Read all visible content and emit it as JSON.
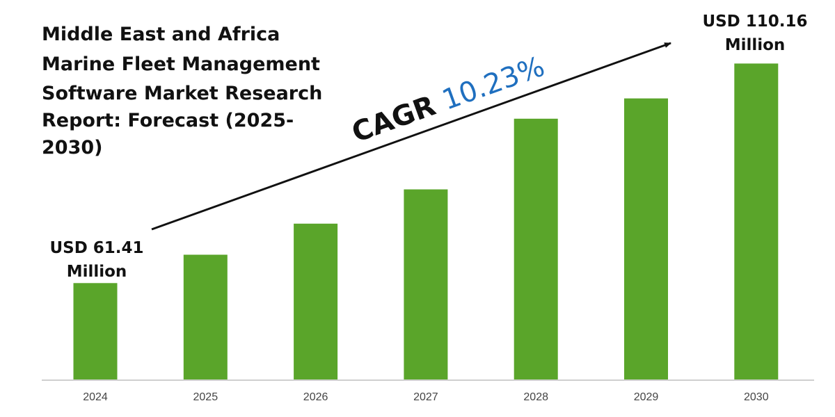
{
  "chart_data": {
    "type": "bar",
    "title_lines": [
      "Middle East and Africa",
      "Marine Fleet Management",
      "Software Market Research",
      "Report: Forecast (2025-",
      "2030)"
    ],
    "categories": [
      "2024",
      "2025",
      "2026",
      "2027",
      "2028",
      "2029",
      "2030"
    ],
    "values": [
      61.41,
      67.7,
      74.6,
      82.2,
      97.9,
      102.4,
      110.16
    ],
    "ylim": [
      40,
      115
    ],
    "grid": false,
    "bar_color": "#5aa52a",
    "axis_color": "#bfbfbf",
    "annotations": {
      "start_label_lines": [
        "USD 61.41",
        "Million"
      ],
      "end_label_lines": [
        "USD 110.16",
        "Million"
      ],
      "cagr_prefix": "CAGR ",
      "cagr_value": "10.23%",
      "cagr_value_color": "#1f6fbf"
    }
  }
}
